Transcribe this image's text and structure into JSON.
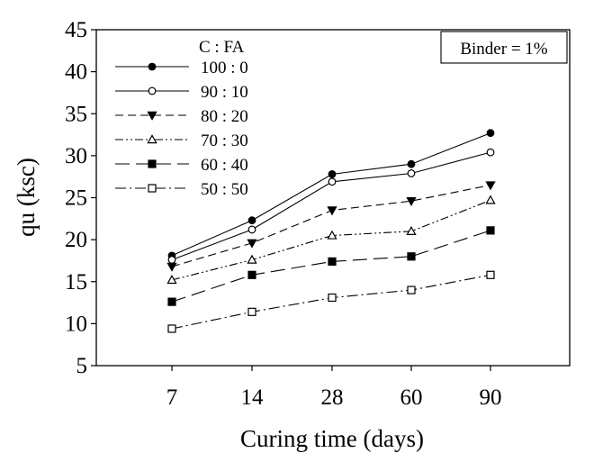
{
  "chart_data": {
    "type": "line",
    "title": "",
    "xlabel": "Curing time (days)",
    "ylabel": "qu (ksc)",
    "categories": [
      "7",
      "14",
      "28",
      "60",
      "90"
    ],
    "ylim": [
      5,
      45
    ],
    "yticks": [
      5,
      10,
      15,
      20,
      25,
      30,
      35,
      40,
      45
    ],
    "legend_title": "C : FA",
    "legend_placement": "top-left",
    "annotation": "Binder = 1%",
    "grid": false,
    "series": [
      {
        "name": "100 : 0",
        "marker": "filled-circle",
        "dash": "solid",
        "values": [
          18.1,
          22.3,
          27.8,
          29.0,
          32.7
        ]
      },
      {
        "name": "90 : 10",
        "marker": "open-circle",
        "dash": "solid",
        "values": [
          17.6,
          21.2,
          26.9,
          27.9,
          30.4
        ]
      },
      {
        "name": "80 : 20",
        "marker": "filled-triangle-down",
        "dash": "dashed",
        "values": [
          16.8,
          19.6,
          23.5,
          24.6,
          26.5
        ]
      },
      {
        "name": "70 : 30",
        "marker": "open-triangle-up",
        "dash": "dash-dot-dot",
        "values": [
          15.2,
          17.6,
          20.5,
          21.0,
          24.7
        ]
      },
      {
        "name": "60 : 40",
        "marker": "filled-square",
        "dash": "long-dash",
        "values": [
          12.6,
          15.8,
          17.4,
          18.0,
          21.1
        ]
      },
      {
        "name": "50 : 50",
        "marker": "open-square",
        "dash": "dash-dot",
        "values": [
          9.4,
          11.4,
          13.1,
          14.0,
          15.8
        ]
      }
    ]
  }
}
